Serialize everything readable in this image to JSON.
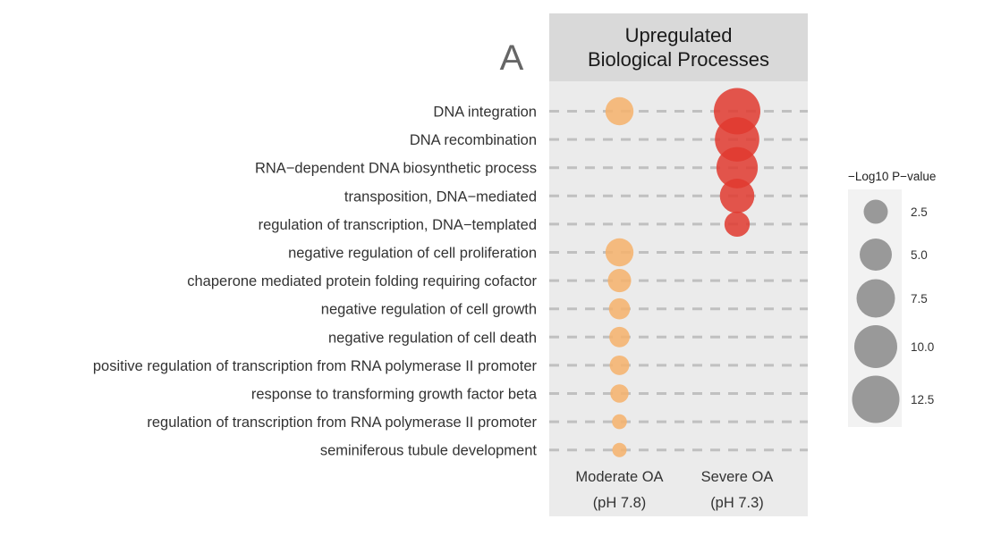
{
  "chart_data": {
    "type": "scatter",
    "panel_label": "A",
    "facet_title": [
      "Upregulated",
      "Biological Processes"
    ],
    "x_categories": [
      {
        "key": "moderate",
        "label_line1": "Moderate OA",
        "label_line2": "(pH 7.8)"
      },
      {
        "key": "severe",
        "label_line1": "Severe OA",
        "label_line2": "(pH 7.3)"
      }
    ],
    "categories": [
      "DNA integration",
      "DNA recombination",
      "RNA−dependent DNA biosynthetic process",
      "transposition, DNA−mediated",
      "regulation of transcription, DNA−templated",
      "negative regulation of cell proliferation",
      "chaperone mediated protein folding requiring cofactor",
      "negative regulation of cell growth",
      "negative regulation of cell death",
      "positive regulation of transcription from RNA polymerase II promoter",
      "response to transforming growth factor beta",
      "regulation of transcription from RNA polymerase II promoter",
      "seminiferous tubule development"
    ],
    "points": [
      {
        "category": "DNA integration",
        "x": "moderate",
        "neg_log10_p": 5.5
      },
      {
        "category": "DNA integration",
        "x": "severe",
        "neg_log10_p": 14.0
      },
      {
        "category": "DNA recombination",
        "x": "severe",
        "neg_log10_p": 12.8
      },
      {
        "category": "RNA−dependent DNA biosynthetic process",
        "x": "severe",
        "neg_log10_p": 11.2
      },
      {
        "category": "transposition, DNA−mediated",
        "x": "severe",
        "neg_log10_p": 8.0
      },
      {
        "category": "regulation of transcription, DNA−templated",
        "x": "severe",
        "neg_log10_p": 4.6
      },
      {
        "category": "negative regulation of cell proliferation",
        "x": "moderate",
        "neg_log10_p": 5.5
      },
      {
        "category": "chaperone mediated protein folding requiring cofactor",
        "x": "moderate",
        "neg_log10_p": 4.0
      },
      {
        "category": "negative regulation of cell growth",
        "x": "moderate",
        "neg_log10_p": 3.4
      },
      {
        "category": "negative regulation of cell death",
        "x": "moderate",
        "neg_log10_p": 3.2
      },
      {
        "category": "positive regulation of transcription from RNA polymerase II promoter",
        "x": "moderate",
        "neg_log10_p": 3.0
      },
      {
        "category": "response to transforming growth factor beta",
        "x": "moderate",
        "neg_log10_p": 2.7
      },
      {
        "category": "regulation of transcription from RNA polymerase II promoter",
        "x": "moderate",
        "neg_log10_p": 2.0
      },
      {
        "category": "seminiferous tubule development",
        "x": "moderate",
        "neg_log10_p": 1.9
      }
    ],
    "size_legend": {
      "title": "−Log10 P−value",
      "breaks": [
        2.5,
        5.0,
        7.5,
        10.0,
        12.5
      ],
      "labels": [
        "2.5",
        "5.0",
        "7.5",
        "10.0",
        "12.5"
      ]
    },
    "colors": {
      "moderate": "#f6b26b",
      "severe": "#e03a2f",
      "legend_point": "#999999",
      "panel_bg": "#ebebeb",
      "strip_bg": "#d9d9d9",
      "guide_line": "#c0c0c0",
      "legend_bg": "#f2f2f2"
    },
    "legend_position": "right"
  }
}
